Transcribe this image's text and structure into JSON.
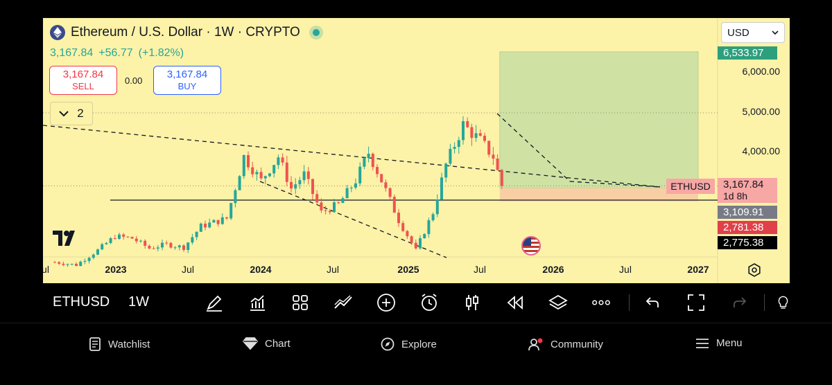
{
  "header": {
    "title": "Ethereum / U.S. Dollar · 1W · CRYPTO",
    "price": "3,167.84",
    "change": "+56.77",
    "change_pct": "(+1.82%)"
  },
  "trade": {
    "sell_price": "3,167.84",
    "sell_label": "SELL",
    "spread": "0.00",
    "buy_price": "3,167.84",
    "buy_label": "BUY"
  },
  "indicators_count": "2",
  "currency": "USD",
  "chart_data": {
    "type": "candlestick",
    "symbol": "ETHUSD",
    "timeframe": "1W",
    "y_ticks": [
      "6,000.00",
      "5,000.00",
      "4,000.00"
    ],
    "x_ticks": [
      {
        "label": "Jul",
        "bold": false
      },
      {
        "label": "2023",
        "bold": true
      },
      {
        "label": "Jul",
        "bold": false
      },
      {
        "label": "2024",
        "bold": true
      },
      {
        "label": "Jul",
        "bold": false
      },
      {
        "label": "2025",
        "bold": true
      },
      {
        "label": "Jul",
        "bold": false
      },
      {
        "label": "2026",
        "bold": true
      },
      {
        "label": "Jul",
        "bold": false
      },
      {
        "label": "2027",
        "bold": true
      }
    ],
    "price_labels": [
      {
        "value": "6,533.97",
        "color": "#2e9f7d",
        "text_color": "#ffffff"
      },
      {
        "value": "3,109.91",
        "color": "#787b86",
        "text_color": "#ffffff"
      },
      {
        "value": "2,781.38",
        "color": "#e0404a",
        "text_color": "#ffffff"
      },
      {
        "value": "2,775.38",
        "color": "#000000",
        "text_color": "#ffffff"
      }
    ],
    "last_price": {
      "value": "3,167.84",
      "countdown": "1d 8h",
      "tag": "ETHUSD",
      "color": "#f7a7a4"
    },
    "position": {
      "target": 6533.97,
      "entry": 3109.91,
      "stop": 2781.38
    },
    "colors": {
      "up": "#26a69a",
      "down": "#ef5350",
      "background": "#fcf2a8"
    },
    "anchors": [
      {
        "t": 0,
        "p": 1250
      },
      {
        "t": 5,
        "p": 1180
      },
      {
        "t": 10,
        "p": 1550
      },
      {
        "t": 14,
        "p": 1900
      },
      {
        "t": 18,
        "p": 1850
      },
      {
        "t": 22,
        "p": 1600
      },
      {
        "t": 26,
        "p": 1700
      },
      {
        "t": 30,
        "p": 1620
      },
      {
        "t": 34,
        "p": 2150
      },
      {
        "t": 40,
        "p": 2350
      },
      {
        "t": 44,
        "p": 3900
      },
      {
        "t": 48,
        "p": 3300
      },
      {
        "t": 52,
        "p": 3900
      },
      {
        "t": 55,
        "p": 3100
      },
      {
        "t": 58,
        "p": 3450
      },
      {
        "t": 62,
        "p": 2500
      },
      {
        "t": 66,
        "p": 2700
      },
      {
        "t": 70,
        "p": 3300
      },
      {
        "t": 73,
        "p": 4000
      },
      {
        "t": 76,
        "p": 3300
      },
      {
        "t": 80,
        "p": 2300
      },
      {
        "t": 84,
        "p": 1550
      },
      {
        "t": 88,
        "p": 2500
      },
      {
        "t": 91,
        "p": 3700
      },
      {
        "t": 95,
        "p": 4700
      },
      {
        "t": 99,
        "p": 4300
      },
      {
        "t": 102,
        "p": 3900
      },
      {
        "t": 104,
        "p": 3167
      }
    ]
  },
  "toolbar": {
    "symbol": "ETHUSD",
    "timeframe": "1W",
    "icons": [
      "draw-icon",
      "indicators-icon",
      "templates-icon",
      "compare-icon",
      "add-icon",
      "alert-icon",
      "candles-icon",
      "replay-icon",
      "layers-icon",
      "more-icon",
      "undo-icon",
      "fullscreen-icon",
      "redo-icon",
      "bulb-icon"
    ]
  },
  "nav": {
    "watchlist": "Watchlist",
    "chart": "Chart",
    "explore": "Explore",
    "community": "Community",
    "menu": "Menu"
  }
}
